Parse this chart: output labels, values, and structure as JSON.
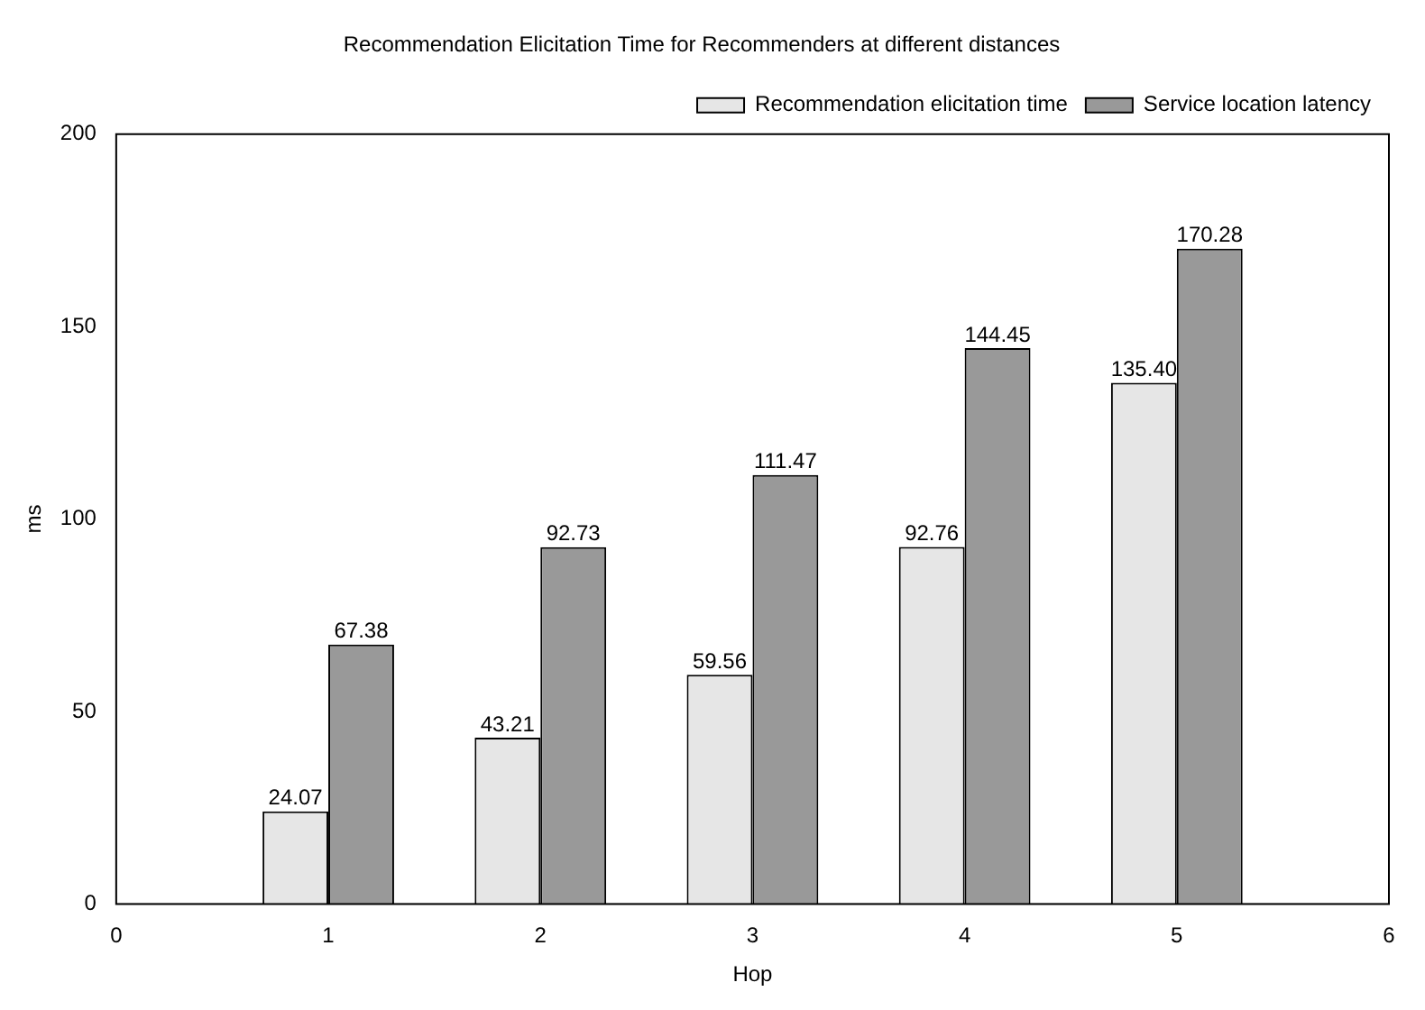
{
  "chart_data": {
    "type": "bar",
    "title": "Recommendation Elicitation Time for Recommenders at different distances",
    "xlabel": "Hop",
    "ylabel": "ms",
    "x": [
      1,
      2,
      3,
      4,
      5
    ],
    "series": [
      {
        "name": "Recommendation elicitation time",
        "color": "#e6e6e6",
        "values": [
          24.07,
          43.21,
          59.56,
          92.76,
          135.4
        ],
        "value_labels": [
          "24.07",
          "43.21",
          "59.56",
          "92.76",
          "135.40"
        ]
      },
      {
        "name": "Service location latency",
        "color": "#999999",
        "values": [
          67.38,
          92.73,
          111.47,
          144.45,
          170.28
        ],
        "value_labels": [
          "67.38",
          "92.73",
          "111.47",
          "144.45",
          "170.28"
        ]
      }
    ],
    "xlim": [
      0,
      6
    ],
    "xticks": [
      0,
      1,
      2,
      3,
      4,
      5,
      6
    ],
    "ylim": [
      0,
      200
    ],
    "yticks": [
      0,
      50,
      100,
      150,
      200
    ],
    "grid": false,
    "legend": "top right"
  }
}
